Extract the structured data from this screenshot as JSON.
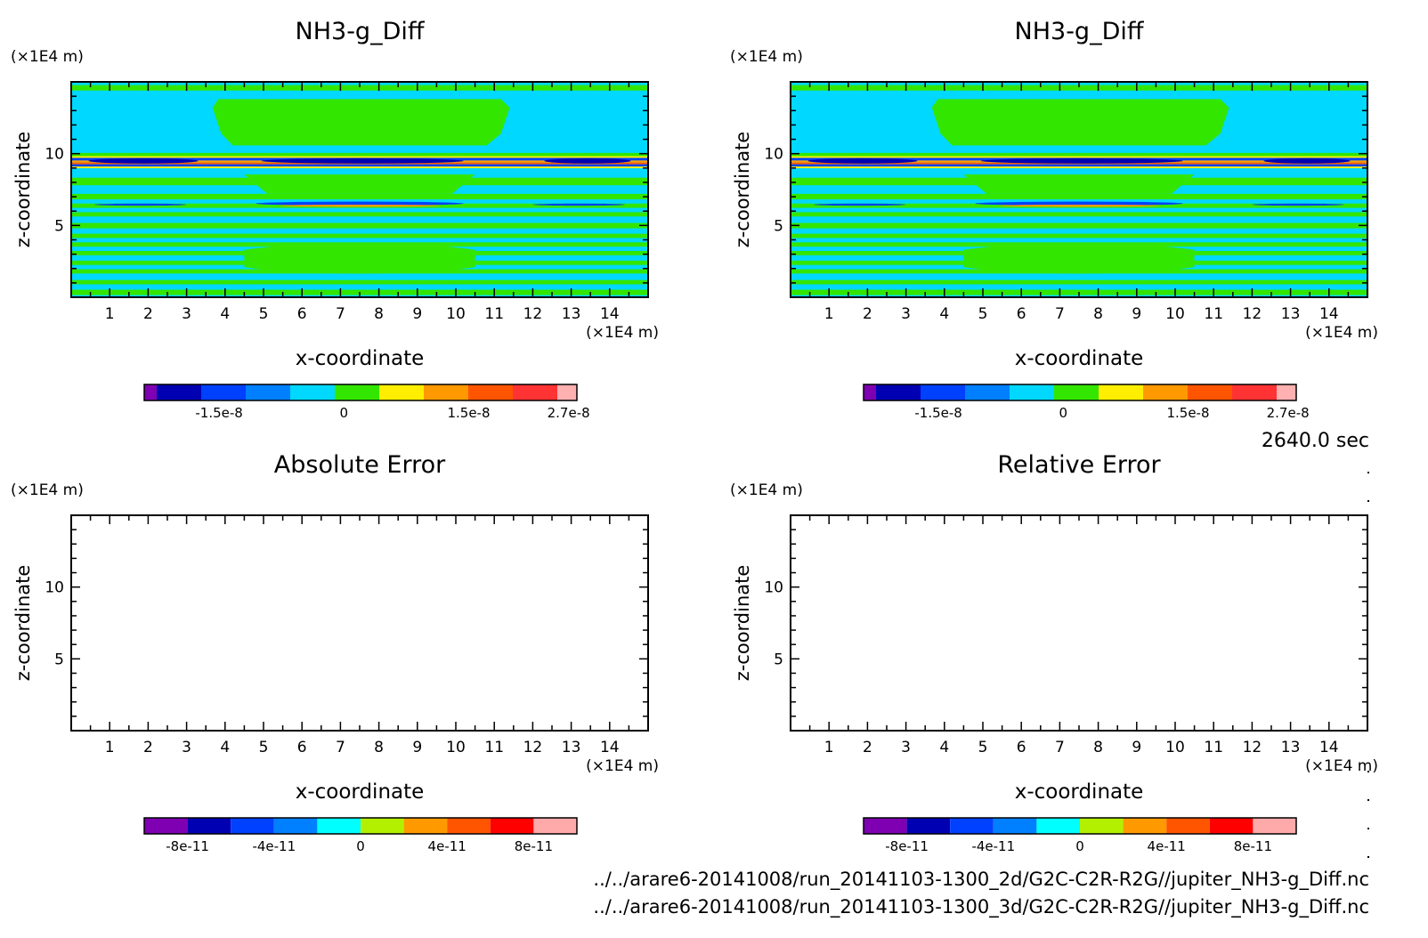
{
  "time_label": "2640.0 sec",
  "files": [
    "../../arare6-20141008/run_20141103-1300_2d/G2C-C2R-R2G//jupiter_NH3-g_Diff.nc",
    "../../arare6-20141008/run_20141103-1300_3d/G2C-C2R-R2G//jupiter_NH3-g_Diff.nc"
  ],
  "chart_data": [
    {
      "type": "heatmap",
      "title": "NH3-g_Diff",
      "xlabel": "x-coordinate",
      "ylabel": "z-coordinate",
      "x_unit": "(×1E4 m)",
      "y_unit": "(×1E4 m)",
      "xlim": [
        0,
        15
      ],
      "ylim": [
        0,
        15
      ],
      "x_ticks": [
        1,
        2,
        3,
        4,
        5,
        6,
        7,
        8,
        9,
        10,
        11,
        12,
        13,
        14
      ],
      "y_ticks": [
        5,
        10
      ],
      "colorbar": {
        "colors": [
          "#7f00b2",
          "#0000b2",
          "#0040ff",
          "#0080ff",
          "#00d8ff",
          "#33e600",
          "#ffee00",
          "#ff9900",
          "#ff5500",
          "#ff3333",
          "#ffb0b0"
        ],
        "labels": [
          "-1.5e-8",
          "0",
          "1.5e-8",
          "2.7e-8"
        ],
        "label_values": [
          -1.5e-08,
          0,
          1.5e-08,
          2.7e-08
        ],
        "range": [
          -2.4e-08,
          2.8e-08
        ]
      }
    },
    {
      "type": "heatmap",
      "title": "NH3-g_Diff",
      "xlabel": "x-coordinate",
      "ylabel": "z-coordinate",
      "x_unit": "(×1E4 m)",
      "y_unit": "(×1E4 m)",
      "xlim": [
        0,
        15
      ],
      "ylim": [
        0,
        15
      ],
      "x_ticks": [
        1,
        2,
        3,
        4,
        5,
        6,
        7,
        8,
        9,
        10,
        11,
        12,
        13,
        14
      ],
      "y_ticks": [
        5,
        10
      ],
      "colorbar": {
        "colors": [
          "#7f00b2",
          "#0000b2",
          "#0040ff",
          "#0080ff",
          "#00d8ff",
          "#33e600",
          "#ffee00",
          "#ff9900",
          "#ff5500",
          "#ff3333",
          "#ffb0b0"
        ],
        "labels": [
          "-1.5e-8",
          "0",
          "1.5e-8",
          "2.7e-8"
        ],
        "label_values": [
          -1.5e-08,
          0,
          1.5e-08,
          2.7e-08
        ],
        "range": [
          -2.4e-08,
          2.8e-08
        ]
      }
    },
    {
      "type": "heatmap",
      "title": "Absolute Error",
      "xlabel": "x-coordinate",
      "ylabel": "z-coordinate",
      "x_unit": "(×1E4 m)",
      "y_unit": "(×1E4 m)",
      "xlim": [
        0,
        15
      ],
      "ylim": [
        0,
        15
      ],
      "x_ticks": [
        1,
        2,
        3,
        4,
        5,
        6,
        7,
        8,
        9,
        10,
        11,
        12,
        13,
        14
      ],
      "y_ticks": [
        5,
        10
      ],
      "colorbar": {
        "colors": [
          "#7f00b2",
          "#0000b2",
          "#0040ff",
          "#0080ff",
          "#00ffff",
          "#b2f000",
          "#ff9900",
          "#ff5500",
          "#ff0000",
          "#ffaaaa"
        ],
        "labels": [
          "-8e-11",
          "-4e-11",
          "0",
          "4e-11",
          "8e-11"
        ],
        "label_values": [
          -8e-11,
          -4e-11,
          0,
          4e-11,
          8e-11
        ],
        "range": [
          -1e-10,
          1e-10
        ]
      }
    },
    {
      "type": "heatmap",
      "title": "Relative Error",
      "xlabel": "x-coordinate",
      "ylabel": "z-coordinate",
      "x_unit": "(×1E4 m)",
      "y_unit": "(×1E4 m)",
      "xlim": [
        0,
        15
      ],
      "ylim": [
        0,
        15
      ],
      "x_ticks": [
        1,
        2,
        3,
        4,
        5,
        6,
        7,
        8,
        9,
        10,
        11,
        12,
        13,
        14
      ],
      "y_ticks": [
        5,
        10
      ],
      "colorbar": {
        "colors": [
          "#7f00b2",
          "#0000b2",
          "#0040ff",
          "#0080ff",
          "#00ffff",
          "#b2f000",
          "#ff9900",
          "#ff5500",
          "#ff0000",
          "#ffaaaa"
        ],
        "labels": [
          "-8e-11",
          "-4e-11",
          "0",
          "4e-11",
          "8e-11"
        ],
        "label_values": [
          -8e-11,
          -4e-11,
          0,
          4e-11,
          8e-11
        ],
        "range": [
          -1e-10,
          1e-10
        ]
      }
    }
  ]
}
